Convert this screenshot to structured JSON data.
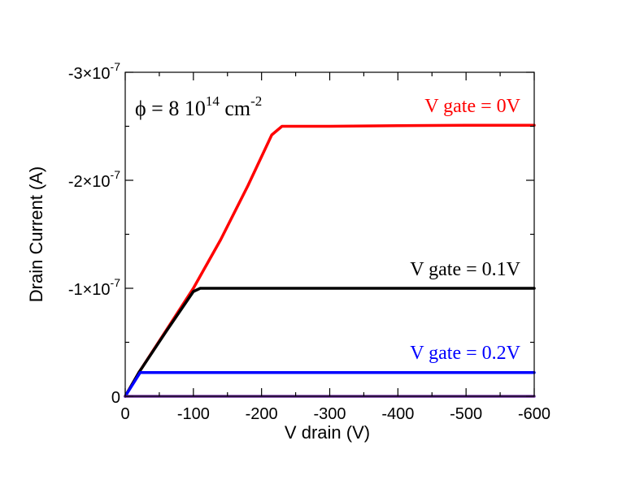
{
  "chart_data": {
    "type": "line",
    "xlabel": "V drain (V)",
    "ylabel": "Drain Current (A)",
    "xlim": [
      0,
      -600
    ],
    "ylim": [
      0,
      -3e-07
    ],
    "x_ticks": [
      {
        "value": 0,
        "label": "0"
      },
      {
        "value": -100,
        "label": "-100"
      },
      {
        "value": -200,
        "label": "-200"
      },
      {
        "value": -300,
        "label": "-300"
      },
      {
        "value": -400,
        "label": "-400"
      },
      {
        "value": -500,
        "label": "-500"
      },
      {
        "value": -600,
        "label": "-600"
      }
    ],
    "y_ticks": [
      {
        "value": 0,
        "mantissa": "0",
        "exponent": ""
      },
      {
        "value": -1e-07,
        "mantissa": "-1×10",
        "exponent": "-7"
      },
      {
        "value": -2e-07,
        "mantissa": "-2×10",
        "exponent": "-7"
      },
      {
        "value": -3e-07,
        "mantissa": "-3×10",
        "exponent": "-7"
      }
    ],
    "annotation": {
      "prefix": "ϕ  = 8 10",
      "sup1": "14",
      "mid": " cm",
      "sup2": "-2"
    },
    "series": [
      {
        "name": "V gate = 0V",
        "color": "#ff0000",
        "x": [
          0,
          -20,
          -60,
          -100,
          -140,
          -180,
          -215,
          -230,
          -300,
          -400,
          -500,
          -600
        ],
        "y": [
          0,
          -2.2e-08,
          -6.1e-08,
          -1e-07,
          -1.45e-07,
          -1.95e-07,
          -2.42e-07,
          -2.5e-07,
          -2.5e-07,
          -2.505e-07,
          -2.51e-07,
          -2.51e-07
        ]
      },
      {
        "name": "V gate = 0.1V",
        "color": "#000000",
        "x": [
          0,
          -20,
          -60,
          -100,
          -110,
          -200,
          -300,
          -400,
          -500,
          -600
        ],
        "y": [
          0,
          -2.2e-08,
          -6e-08,
          -9.7e-08,
          -1e-07,
          -1e-07,
          -1e-07,
          -1e-07,
          -1e-07,
          -1e-07
        ],
        "label_color": "#000000"
      },
      {
        "name": "V gate = 0.2V",
        "color": "#0000ff",
        "x": [
          0,
          -22,
          -100,
          -200,
          -300,
          -400,
          -500,
          -600
        ],
        "y": [
          0,
          -2.2e-08,
          -2.2e-08,
          -2.2e-08,
          -2.2e-08,
          -2.2e-08,
          -2.2e-08,
          -2.2e-08
        ]
      },
      {
        "name": "",
        "color": "#7030a0",
        "x": [
          0,
          -600
        ],
        "y": [
          0,
          0
        ]
      }
    ],
    "grid": false,
    "legend": "inline labels"
  }
}
